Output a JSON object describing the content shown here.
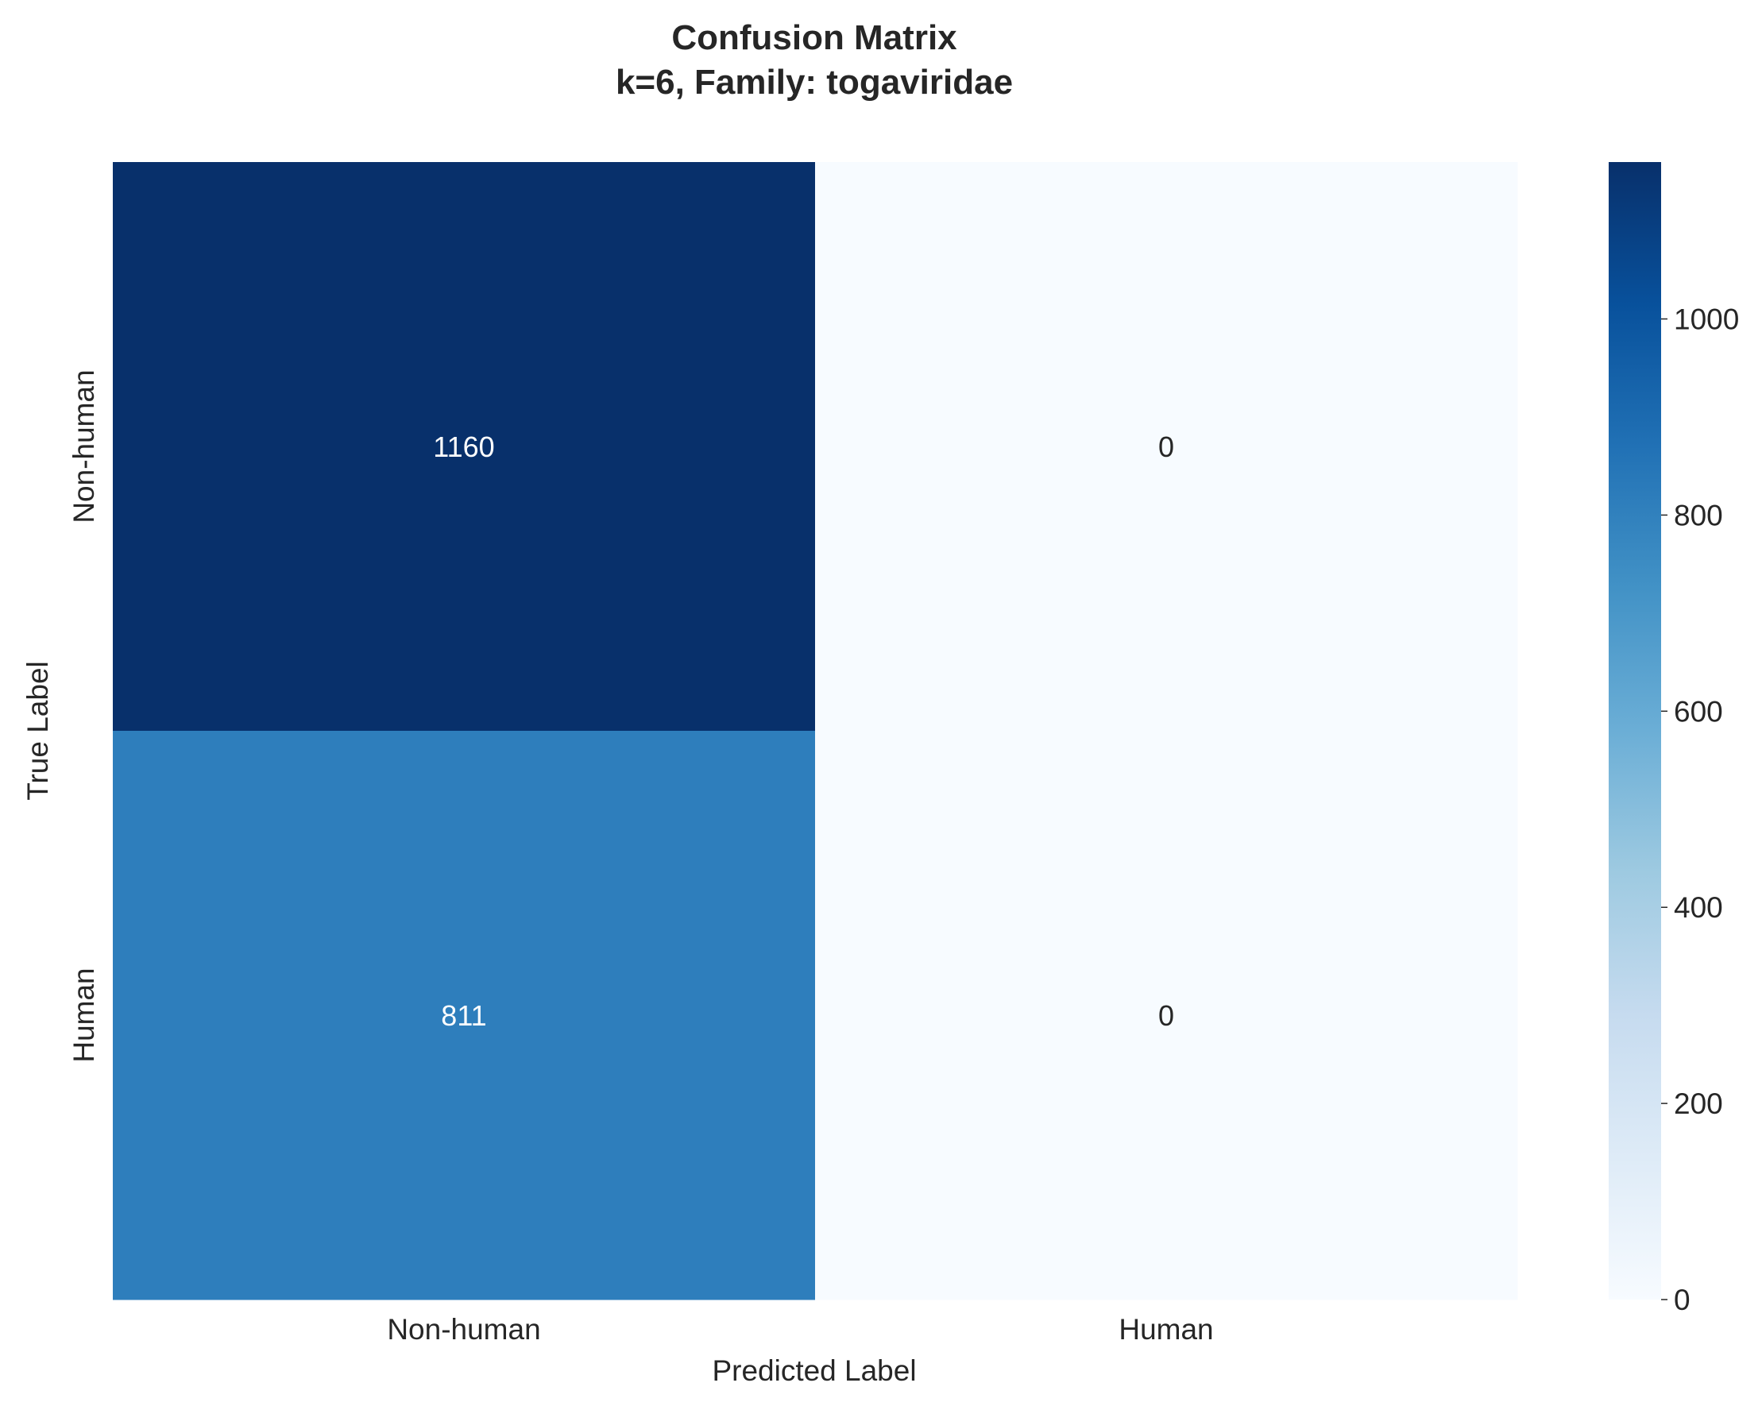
{
  "chart_data": {
    "type": "heatmap",
    "title": "Confusion Matrix",
    "subtitle": "k=6, Family: togaviridae",
    "xlabel": "Predicted Label",
    "ylabel": "True Label",
    "x_categories": [
      "Non-human",
      "Human"
    ],
    "y_categories": [
      "Non-human",
      "Human"
    ],
    "values": [
      [
        1160,
        0
      ],
      [
        811,
        0
      ]
    ],
    "colormap": "Blues",
    "colorbar": {
      "min": 0,
      "max": 1160,
      "ticks": [
        0,
        200,
        400,
        600,
        800,
        1000
      ]
    },
    "colors": {
      "low": "#f7fbff",
      "high": "#08306b",
      "text_dark": "#262626",
      "text_light": "#ffffff"
    }
  }
}
